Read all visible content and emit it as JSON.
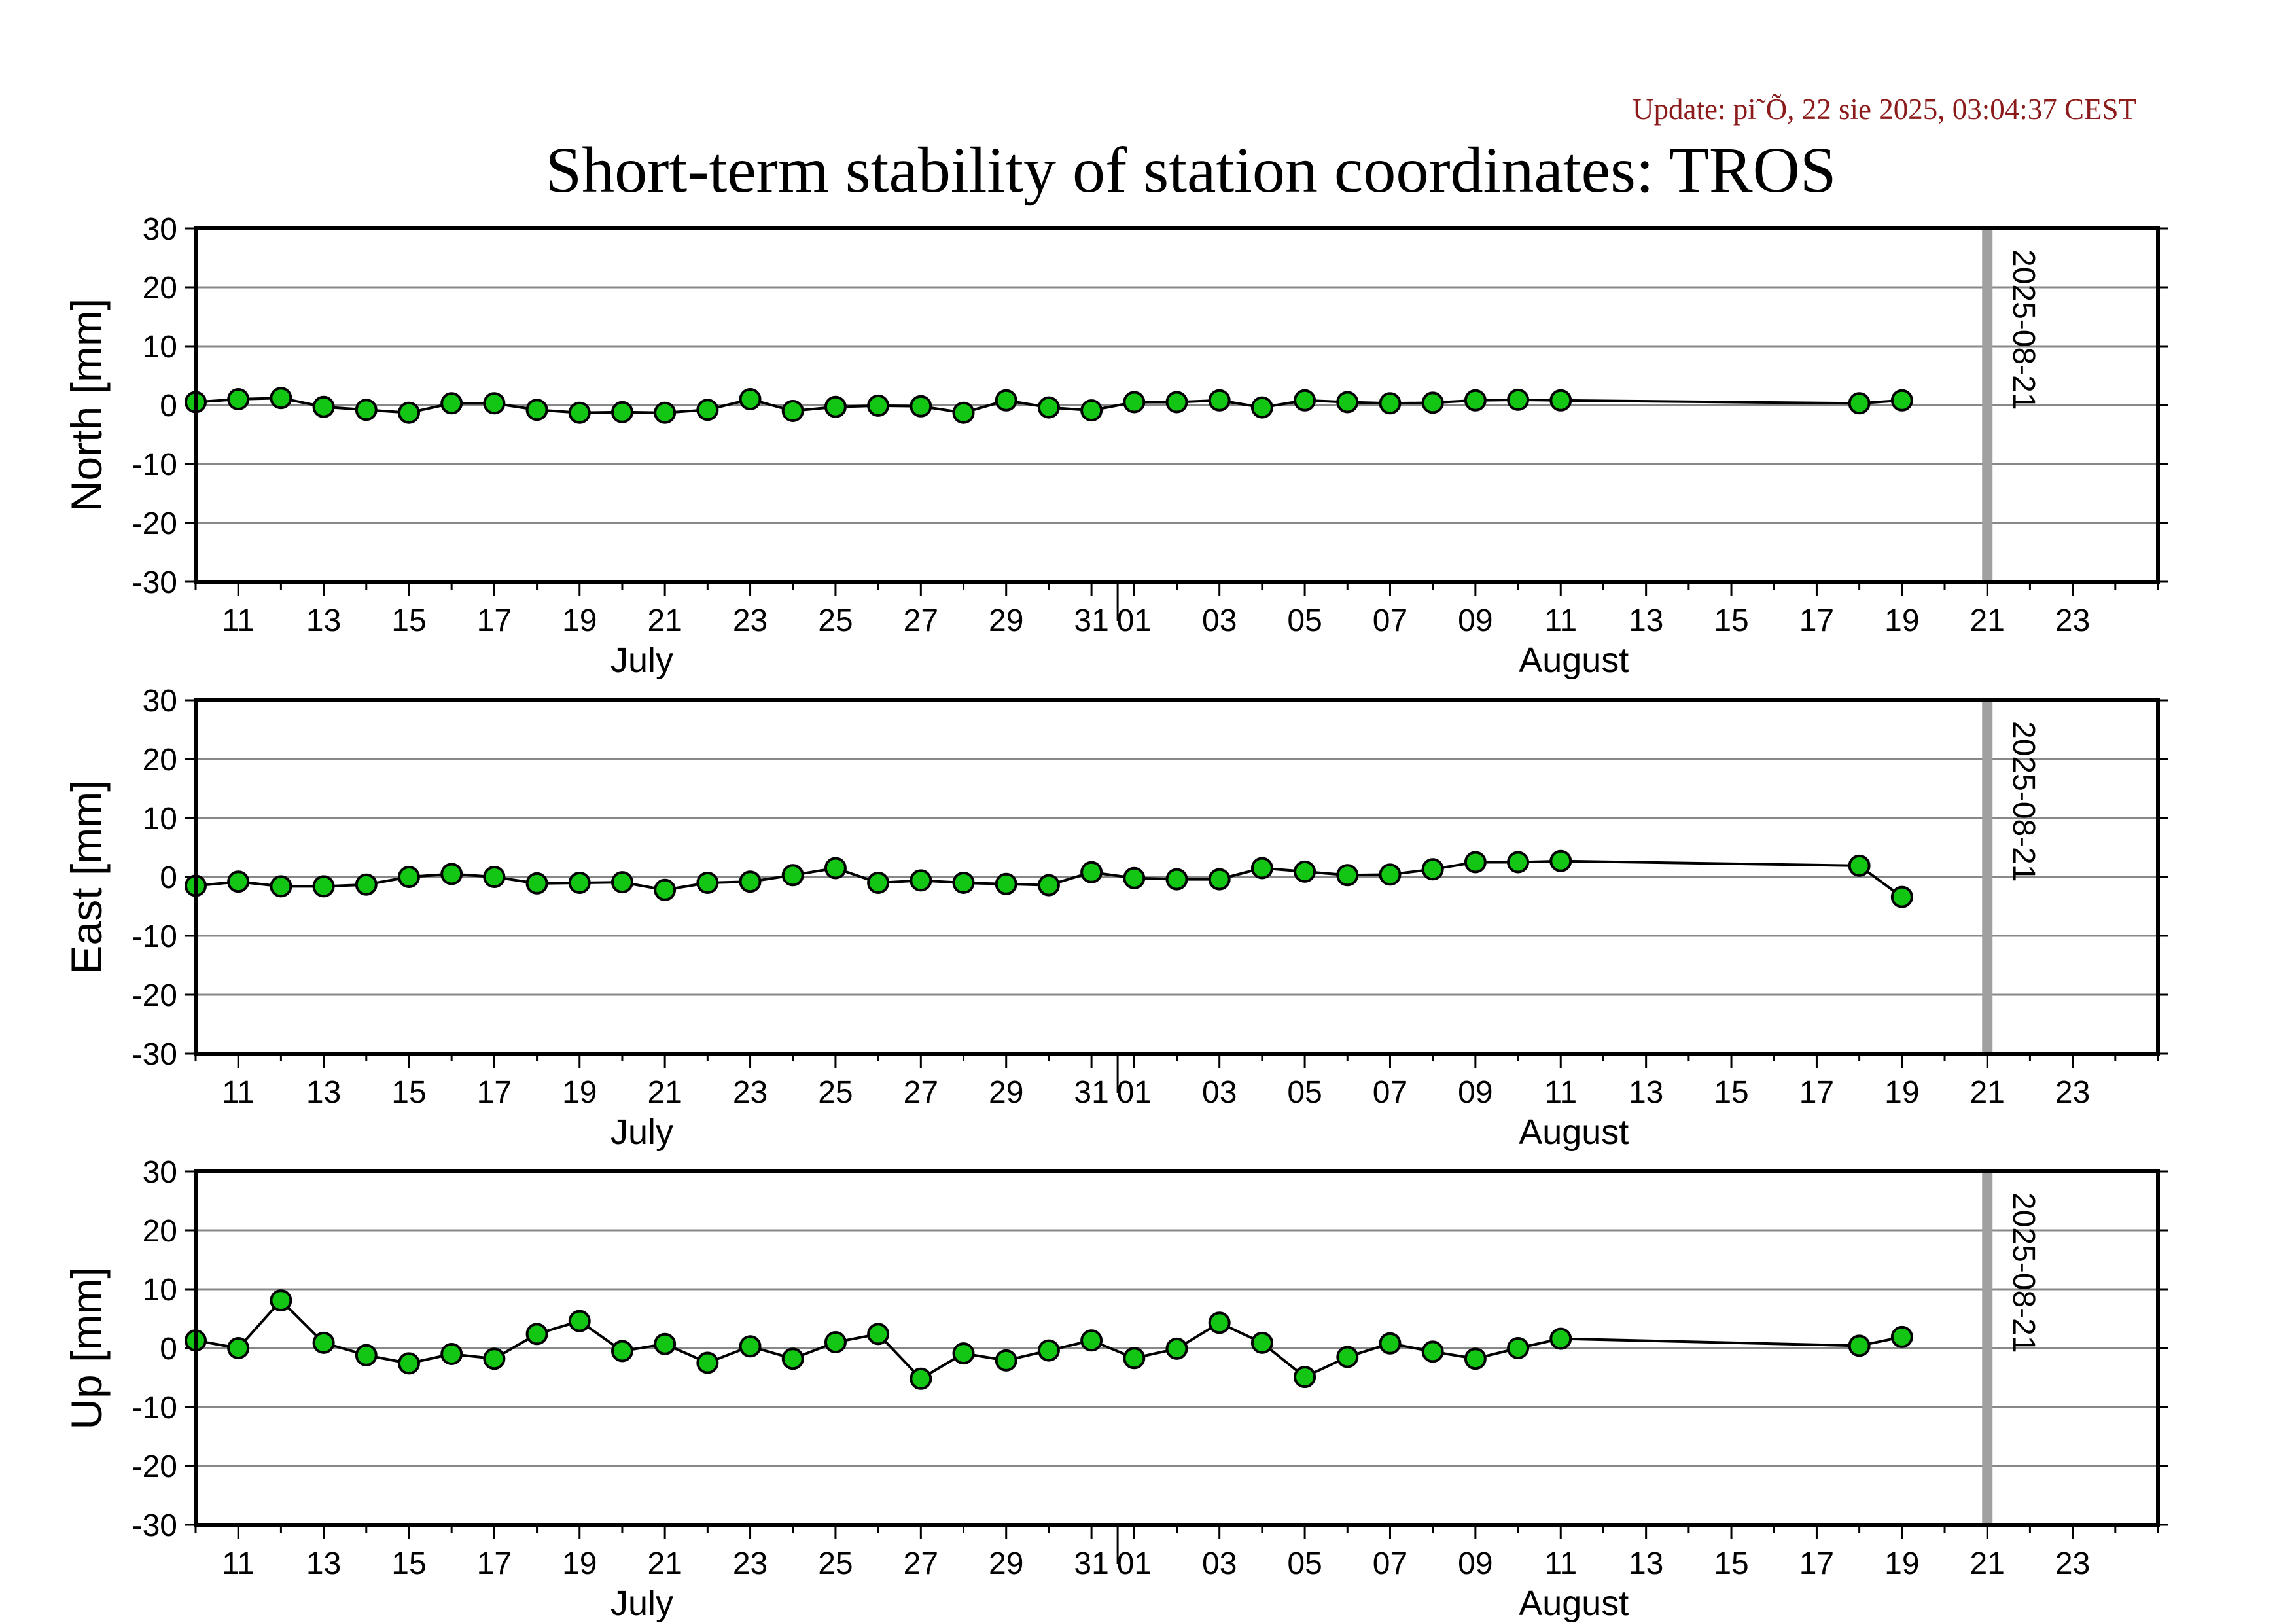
{
  "update_text": "Update: pi˜Õ, 22 sie 2025, 03:04:37 CEST",
  "title": "Short-term stability of station coordinates: TROS",
  "colors": {
    "update": "#8b1a1a",
    "marker": "#13c613",
    "line": "#000000",
    "grid": "#888888",
    "marker_line": "#a0a0a0"
  },
  "chart_data": [
    {
      "type": "line",
      "ylabel": "North [mm]",
      "ylim": [
        -30,
        30
      ],
      "yticks": [
        30,
        20,
        10,
        0,
        -10,
        -20,
        -30
      ],
      "xlim": [
        "2025-07-10",
        "2025-08-25"
      ],
      "grid": true,
      "xtick_labels": [
        "11",
        "13",
        "15",
        "17",
        "19",
        "21",
        "23",
        "25",
        "27",
        "29",
        "31",
        "01",
        "03",
        "05",
        "07",
        "09",
        "11",
        "13",
        "15",
        "17",
        "19",
        "21",
        "23"
      ],
      "month_labels": [
        "July",
        "August"
      ],
      "marker_label": "2025-08-21",
      "x": [
        "2025-07-10",
        "2025-07-11",
        "2025-07-12",
        "2025-07-13",
        "2025-07-14",
        "2025-07-15",
        "2025-07-16",
        "2025-07-17",
        "2025-07-18",
        "2025-07-19",
        "2025-07-20",
        "2025-07-21",
        "2025-07-22",
        "2025-07-23",
        "2025-07-24",
        "2025-07-25",
        "2025-07-26",
        "2025-07-27",
        "2025-07-28",
        "2025-07-29",
        "2025-07-30",
        "2025-07-31",
        "2025-08-01",
        "2025-08-02",
        "2025-08-03",
        "2025-08-04",
        "2025-08-05",
        "2025-08-06",
        "2025-08-07",
        "2025-08-08",
        "2025-08-09",
        "2025-08-10",
        "2025-08-11",
        "2025-08-18",
        "2025-08-19"
      ],
      "values": [
        0.5,
        1.0,
        1.2,
        -0.3,
        -0.8,
        -1.3,
        0.3,
        0.3,
        -0.8,
        -1.3,
        -1.2,
        -1.3,
        -0.8,
        1.0,
        -1.0,
        -0.3,
        -0.1,
        -0.2,
        -1.3,
        0.8,
        -0.4,
        -0.9,
        0.5,
        0.5,
        0.8,
        -0.4,
        0.8,
        0.5,
        0.3,
        0.4,
        0.8,
        0.9,
        0.8,
        0.3,
        0.8
      ]
    },
    {
      "type": "line",
      "ylabel": "East [mm]",
      "ylim": [
        -30,
        30
      ],
      "yticks": [
        30,
        20,
        10,
        0,
        -10,
        -20,
        -30
      ],
      "xlim": [
        "2025-07-10",
        "2025-08-25"
      ],
      "grid": true,
      "xtick_labels": [
        "11",
        "13",
        "15",
        "17",
        "19",
        "21",
        "23",
        "25",
        "27",
        "29",
        "31",
        "01",
        "03",
        "05",
        "07",
        "09",
        "11",
        "13",
        "15",
        "17",
        "19",
        "21",
        "23"
      ],
      "month_labels": [
        "July",
        "August"
      ],
      "marker_label": "2025-08-21",
      "x": [
        "2025-07-10",
        "2025-07-11",
        "2025-07-12",
        "2025-07-13",
        "2025-07-14",
        "2025-07-15",
        "2025-07-16",
        "2025-07-17",
        "2025-07-18",
        "2025-07-19",
        "2025-07-20",
        "2025-07-21",
        "2025-07-22",
        "2025-07-23",
        "2025-07-24",
        "2025-07-25",
        "2025-07-26",
        "2025-07-27",
        "2025-07-28",
        "2025-07-29",
        "2025-07-30",
        "2025-07-31",
        "2025-08-01",
        "2025-08-02",
        "2025-08-03",
        "2025-08-04",
        "2025-08-05",
        "2025-08-06",
        "2025-08-07",
        "2025-08-08",
        "2025-08-09",
        "2025-08-10",
        "2025-08-11",
        "2025-08-18",
        "2025-08-19"
      ],
      "values": [
        -1.5,
        -0.8,
        -1.6,
        -1.6,
        -1.3,
        0.0,
        0.5,
        0.0,
        -1.1,
        -1.0,
        -0.9,
        -2.2,
        -1.0,
        -0.8,
        0.3,
        1.5,
        -1.0,
        -0.6,
        -1.0,
        -1.2,
        -1.4,
        0.8,
        -0.2,
        -0.4,
        -0.4,
        1.5,
        0.9,
        0.3,
        0.4,
        1.3,
        2.5,
        2.5,
        2.7,
        1.9,
        -3.4
      ]
    },
    {
      "type": "line",
      "ylabel": "Up [mm]",
      "ylim": [
        -30,
        30
      ],
      "yticks": [
        30,
        20,
        10,
        0,
        -10,
        -20,
        -30
      ],
      "xlim": [
        "2025-07-10",
        "2025-08-25"
      ],
      "grid": true,
      "xtick_labels": [
        "11",
        "13",
        "15",
        "17",
        "19",
        "21",
        "23",
        "25",
        "27",
        "29",
        "31",
        "01",
        "03",
        "05",
        "07",
        "09",
        "11",
        "13",
        "15",
        "17",
        "19",
        "21",
        "23"
      ],
      "month_labels": [
        "July",
        "August"
      ],
      "marker_label": "2025-08-21",
      "x": [
        "2025-07-10",
        "2025-07-11",
        "2025-07-12",
        "2025-07-13",
        "2025-07-14",
        "2025-07-15",
        "2025-07-16",
        "2025-07-17",
        "2025-07-18",
        "2025-07-19",
        "2025-07-20",
        "2025-07-21",
        "2025-07-22",
        "2025-07-23",
        "2025-07-24",
        "2025-07-25",
        "2025-07-26",
        "2025-07-27",
        "2025-07-28",
        "2025-07-29",
        "2025-07-30",
        "2025-07-31",
        "2025-08-01",
        "2025-08-02",
        "2025-08-03",
        "2025-08-04",
        "2025-08-05",
        "2025-08-06",
        "2025-08-07",
        "2025-08-08",
        "2025-08-09",
        "2025-08-10",
        "2025-08-11",
        "2025-08-18",
        "2025-08-19"
      ],
      "values": [
        1.3,
        0.0,
        8.1,
        0.9,
        -1.2,
        -2.6,
        -1.0,
        -1.8,
        2.4,
        4.6,
        -0.5,
        0.7,
        -2.5,
        0.3,
        -1.8,
        1.0,
        2.4,
        -5.2,
        -0.9,
        -2.1,
        -0.4,
        1.3,
        -1.7,
        -0.1,
        4.3,
        0.9,
        -4.9,
        -1.5,
        0.8,
        -0.6,
        -1.8,
        0.0,
        1.6,
        0.4,
        1.9
      ]
    }
  ]
}
